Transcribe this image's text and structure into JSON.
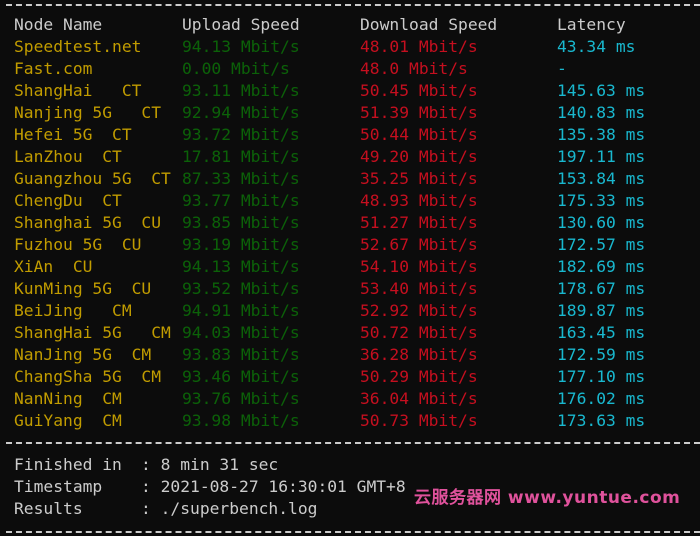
{
  "header": {
    "node": "Node Name",
    "upload": "Upload Speed",
    "download": "Download Speed",
    "latency": "Latency"
  },
  "rows": [
    {
      "node": "Speedtest.net",
      "upload": "94.13 Mbit/s",
      "download": "48.01 Mbit/s",
      "latency": "43.34 ms"
    },
    {
      "node": "Fast.com",
      "upload": "0.00 Mbit/s",
      "download": "48.0 Mbit/s",
      "latency": "-"
    },
    {
      "node": "ShangHai   CT",
      "upload": "93.11 Mbit/s",
      "download": "50.45 Mbit/s",
      "latency": "145.63 ms"
    },
    {
      "node": "Nanjing 5G   CT",
      "upload": "92.94 Mbit/s",
      "download": "51.39 Mbit/s",
      "latency": "140.83 ms"
    },
    {
      "node": "Hefei 5G  CT",
      "upload": "93.72 Mbit/s",
      "download": "50.44 Mbit/s",
      "latency": "135.38 ms"
    },
    {
      "node": "LanZhou  CT",
      "upload": "17.81 Mbit/s",
      "download": "49.20 Mbit/s",
      "latency": "197.11 ms"
    },
    {
      "node": "Guangzhou 5G  CT",
      "upload": "87.33 Mbit/s",
      "download": "35.25 Mbit/s",
      "latency": "153.84 ms"
    },
    {
      "node": "ChengDu  CT",
      "upload": "93.77 Mbit/s",
      "download": "48.93 Mbit/s",
      "latency": "175.33 ms"
    },
    {
      "node": "Shanghai 5G  CU",
      "upload": "93.85 Mbit/s",
      "download": "51.27 Mbit/s",
      "latency": "130.60 ms"
    },
    {
      "node": "Fuzhou 5G  CU",
      "upload": "93.19 Mbit/s",
      "download": "52.67 Mbit/s",
      "latency": "172.57 ms"
    },
    {
      "node": "XiAn  CU",
      "upload": "94.13 Mbit/s",
      "download": "54.10 Mbit/s",
      "latency": "182.69 ms"
    },
    {
      "node": "KunMing 5G  CU",
      "upload": "93.52 Mbit/s",
      "download": "53.40 Mbit/s",
      "latency": "178.67 ms"
    },
    {
      "node": "BeiJing   CM",
      "upload": "94.91 Mbit/s",
      "download": "52.92 Mbit/s",
      "latency": "189.87 ms"
    },
    {
      "node": "ShangHai 5G   CM",
      "upload": "94.03 Mbit/s",
      "download": "50.72 Mbit/s",
      "latency": "163.45 ms"
    },
    {
      "node": "NanJing 5G  CM",
      "upload": "93.83 Mbit/s",
      "download": "36.28 Mbit/s",
      "latency": "172.59 ms"
    },
    {
      "node": "ChangSha 5G  CM",
      "upload": "93.46 Mbit/s",
      "download": "50.29 Mbit/s",
      "latency": "177.10 ms"
    },
    {
      "node": "NanNing  CM",
      "upload": "93.76 Mbit/s",
      "download": "36.04 Mbit/s",
      "latency": "176.02 ms"
    },
    {
      "node": "GuiYang  CM",
      "upload": "93.98 Mbit/s",
      "download": "50.73 Mbit/s",
      "latency": "173.63 ms"
    }
  ],
  "footer": [
    {
      "label": "Finished in",
      "value": ": 8 min 31 sec"
    },
    {
      "label": "Timestamp",
      "value": ": 2021-08-27 16:30:01 GMT+8"
    },
    {
      "label": "Results",
      "value": ": ./superbench.log"
    }
  ],
  "watermark": "云服务器网 www.yuntue.com",
  "colors": {
    "node": "#c19c00",
    "upload": "#0c610a",
    "download": "#c50f1f",
    "latency": "#19b8cf",
    "text": "#cccccc",
    "watermark": "#e0529c"
  }
}
